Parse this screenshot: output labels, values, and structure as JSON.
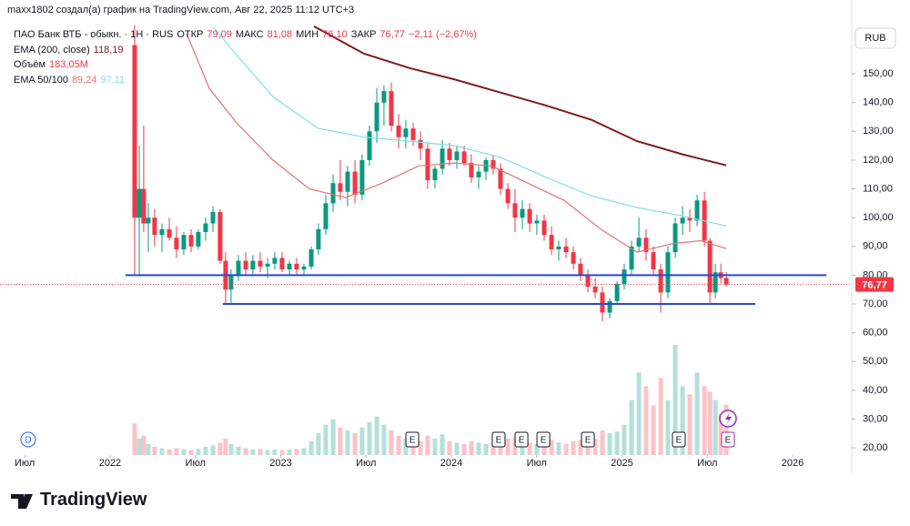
{
  "chart_data": {
    "type": "candlestick",
    "header": "maxx1802 создал(а) график на TradingView.com, Авг 22, 2025 11:12 UTC+3",
    "title": "ПАО Банк ВТБ - обыкн. · 1Н · RUS",
    "currency": "RUB",
    "up_color": "#089981",
    "down_color": "#f23645",
    "xlim": [
      2021.355,
      2026.341
    ],
    "ylim": [
      17.5,
      166.8
    ],
    "xticks": [
      {
        "value": 2021.5,
        "label": "Июл"
      },
      2022,
      {
        "value": 2022.5,
        "label": "Июл"
      },
      2023,
      {
        "value": 2023.5,
        "label": "Июл"
      },
      2024,
      {
        "value": 2024.5,
        "label": "Июл"
      },
      2025,
      {
        "value": 2025.5,
        "label": "Июл"
      },
      2026
    ],
    "yticks": [
      {
        "value": 150,
        "label": "150,00"
      },
      {
        "value": 140,
        "label": "140,00"
      },
      {
        "value": 130,
        "label": "130,00"
      },
      {
        "value": 120,
        "label": "120,00"
      },
      {
        "value": 110,
        "label": "110,00"
      },
      {
        "value": 100,
        "label": "100,00"
      },
      {
        "value": 90,
        "label": "90,00"
      },
      {
        "value": 80,
        "label": "80,00"
      },
      {
        "value": 70,
        "label": "70,00"
      },
      {
        "value": 60,
        "label": "60,00"
      },
      {
        "value": 50,
        "label": "50,00"
      },
      {
        "value": 40,
        "label": "40,00"
      },
      {
        "value": 30,
        "label": "30,00"
      },
      {
        "value": 20,
        "label": "20,00"
      }
    ],
    "x": [
      2022.144,
      2022.171,
      2022.197,
      2022.224,
      2022.261,
      2022.304,
      2022.347,
      2022.389,
      2022.432,
      2022.475,
      2022.517,
      2022.56,
      2022.603,
      2022.645,
      2022.677,
      2022.709,
      2022.752,
      2022.795,
      2022.837,
      2022.88,
      2022.923,
      2022.965,
      2023.008,
      2023.051,
      2023.093,
      2023.136,
      2023.179,
      2023.221,
      2023.264,
      2023.307,
      2023.349,
      2023.392,
      2023.435,
      2023.477,
      2023.52,
      2023.563,
      2023.605,
      2023.648,
      2023.691,
      2023.733,
      2023.776,
      2023.819,
      2023.861,
      2023.904,
      2023.947,
      2023.989,
      2024.032,
      2024.075,
      2024.117,
      2024.16,
      2024.203,
      2024.245,
      2024.288,
      2024.331,
      2024.373,
      2024.416,
      2024.459,
      2024.501,
      2024.544,
      2024.587,
      2024.629,
      2024.672,
      2024.715,
      2024.757,
      2024.8,
      2024.843,
      2024.885,
      2024.928,
      2024.971,
      2025.013,
      2025.056,
      2025.099,
      2025.141,
      2025.184,
      2025.227,
      2025.269,
      2025.312,
      2025.355,
      2025.397,
      2025.44,
      2025.483,
      2025.515,
      2025.547,
      2025.579
    ],
    "open": [
      160,
      100,
      110,
      98,
      100,
      94,
      96,
      93,
      89,
      94,
      90,
      95,
      98,
      102,
      85,
      75,
      80,
      85,
      82,
      85,
      83,
      84,
      86,
      82,
      84,
      82,
      83,
      89,
      96,
      105,
      112,
      109,
      116,
      108,
      120,
      130,
      140,
      144,
      132,
      128,
      131,
      127,
      124,
      113,
      117,
      124,
      120,
      123,
      119,
      114,
      116,
      120,
      117,
      110,
      105,
      100,
      103,
      98,
      99,
      94,
      89,
      90,
      88,
      84,
      80,
      76,
      74,
      67,
      71,
      77,
      82,
      90,
      93,
      88,
      82,
      74,
      88,
      98,
      100,
      99,
      106,
      92,
      74,
      81
    ],
    "high": [
      167,
      125,
      132,
      105,
      103,
      98,
      100,
      97,
      95,
      96,
      96,
      100,
      104,
      103,
      88,
      82,
      87,
      88,
      87,
      88,
      86,
      88,
      88,
      85,
      86,
      84,
      90,
      98,
      108,
      115,
      120,
      118,
      120,
      122,
      132,
      145,
      146,
      147,
      136,
      134,
      133,
      130,
      126,
      118,
      127,
      126,
      125,
      125,
      122,
      118,
      121,
      122,
      119,
      112,
      110,
      106,
      105,
      101,
      101,
      97,
      92,
      93,
      90,
      86,
      82,
      79,
      76,
      72,
      78,
      84,
      92,
      100,
      96,
      90,
      84,
      90,
      100,
      104,
      103,
      108,
      109,
      93,
      84,
      84
    ],
    "low": [
      80,
      80,
      95,
      88,
      90,
      88,
      92,
      86,
      87,
      88,
      89,
      92,
      95,
      84,
      70,
      70,
      78,
      80,
      80,
      81,
      79,
      82,
      81,
      80,
      80,
      80,
      82,
      87,
      94,
      102,
      106,
      104,
      105,
      106,
      118,
      126,
      132,
      130,
      124,
      124,
      125,
      120,
      110,
      110,
      115,
      118,
      117,
      118,
      112,
      110,
      113,
      115,
      108,
      103,
      95,
      96,
      95,
      94,
      92,
      87,
      85,
      86,
      82,
      78,
      74,
      72,
      64,
      65,
      70,
      75,
      80,
      88,
      85,
      80,
      67,
      72,
      86,
      94,
      95,
      97,
      90,
      70,
      72,
      77
    ],
    "close": [
      100,
      110,
      98,
      100,
      94,
      96,
      93,
      89,
      94,
      90,
      95,
      98,
      102,
      85,
      75,
      80,
      85,
      82,
      85,
      83,
      84,
      86,
      82,
      84,
      82,
      83,
      89,
      96,
      105,
      112,
      109,
      116,
      108,
      120,
      130,
      140,
      144,
      132,
      128,
      131,
      127,
      124,
      113,
      117,
      124,
      120,
      123,
      119,
      114,
      116,
      120,
      117,
      110,
      105,
      100,
      103,
      98,
      99,
      94,
      89,
      90,
      88,
      84,
      80,
      76,
      74,
      67,
      71,
      77,
      82,
      90,
      93,
      88,
      82,
      74,
      88,
      98,
      100,
      99,
      106,
      92,
      74,
      81,
      79
    ],
    "last_bar": {
      "x": 2025.611,
      "open": {
        "value": 79.09,
        "label": "79,09"
      },
      "high": {
        "value": 81.08,
        "label": "81,08"
      },
      "low": {
        "value": 76.1,
        "label": "76,10"
      },
      "close": {
        "value": 76.77,
        "label": "76,77"
      }
    },
    "captions": {
      "open": "ОТКР",
      "high": "МАКС",
      "low": "МИН",
      "close": "ЗАКР"
    },
    "change": "−2,11 (−2,67%)",
    "volume": {
      "name": "Объём",
      "ylim": [
        0,
        1560
      ],
      "values": [
        115,
        60,
        70,
        40,
        30,
        25,
        20,
        25,
        20,
        18,
        22,
        30,
        35,
        45,
        60,
        40,
        30,
        25,
        20,
        22,
        18,
        20,
        18,
        20,
        22,
        25,
        50,
        80,
        110,
        130,
        100,
        90,
        80,
        100,
        120,
        140,
        110,
        90,
        70,
        60,
        55,
        50,
        70,
        60,
        75,
        50,
        45,
        40,
        50,
        45,
        40,
        45,
        55,
        60,
        65,
        50,
        45,
        40,
        45,
        55,
        45,
        40,
        50,
        55,
        70,
        60,
        90,
        80,
        85,
        110,
        200,
        300,
        250,
        180,
        280,
        200,
        400,
        250,
        220,
        300,
        250,
        230,
        200,
        150
      ],
      "last": {
        "value": 183.05,
        "label": "183,05M"
      }
    },
    "ema200": {
      "name": "EMA (200, close)",
      "color": "#801922",
      "x": [
        2023.195,
        2023.488,
        2023.755,
        2024.021,
        2024.288,
        2024.555,
        2024.821,
        2025.088,
        2025.355,
        2025.611
      ],
      "values": [
        166.5,
        157,
        152,
        148,
        143.5,
        139,
        134,
        126.6,
        122,
        118.19
      ],
      "last_label": "118,19"
    },
    "ema50_100": {
      "name": "EMA 50/100",
      "lines": [
        {
          "color": "#e57373",
          "x": [
            2022.448,
            2022.581,
            2022.741,
            2022.955,
            2023.168,
            2023.381,
            2023.595,
            2023.808,
            2024.021,
            2024.235,
            2024.448,
            2024.661,
            2024.875,
            2025.088,
            2025.301,
            2025.461,
            2025.611
          ],
          "values": [
            164,
            145,
            133,
            120,
            110,
            107,
            112,
            118,
            119,
            118,
            112,
            106,
            96,
            88,
            91,
            92,
            89.24
          ],
          "last_label": "89,24"
        },
        {
          "color": "#80deea",
          "x": [
            2022.608,
            2022.741,
            2022.955,
            2023.221,
            2023.488,
            2023.755,
            2024.021,
            2024.288,
            2024.555,
            2024.821,
            2025.088,
            2025.355,
            2025.611
          ],
          "values": [
            166,
            156.6,
            142,
            131,
            128,
            126.6,
            125,
            121,
            114,
            107.6,
            103.5,
            100.6,
            97.11
          ],
          "last_label": "97,11"
        }
      ]
    },
    "levels": [
      {
        "value": 80,
        "color": "#2948d8",
        "x": [
          2022.091,
          2026.197
        ]
      },
      {
        "value": 70,
        "color": "#2948d8",
        "x": [
          2022.661,
          2025.781
        ]
      }
    ],
    "events": [
      {
        "x": 2021.52,
        "label": "D"
      },
      {
        "x": 2023.771,
        "label": "E"
      },
      {
        "x": 2024.277,
        "label": "E"
      },
      {
        "x": 2024.411,
        "label": "E"
      },
      {
        "x": 2024.539,
        "label": "E"
      },
      {
        "x": 2024.8,
        "label": "E"
      },
      {
        "x": 2025.333,
        "label": "E"
      },
      {
        "x": 2025.621,
        "label": "E"
      }
    ],
    "branding": "TradingView"
  }
}
